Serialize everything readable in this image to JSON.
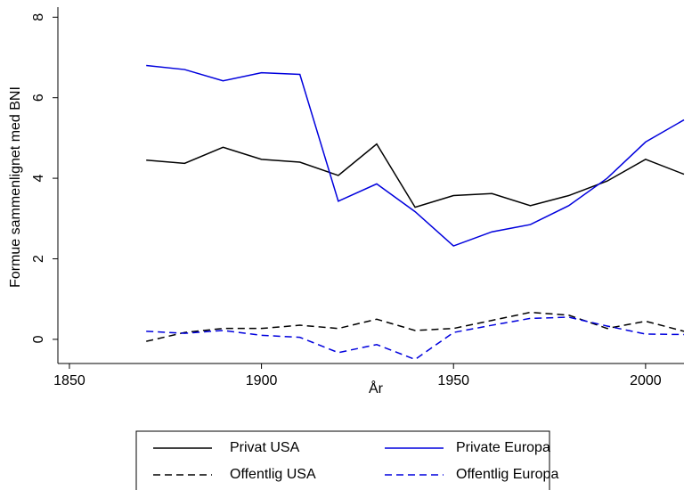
{
  "chart_data": {
    "type": "line",
    "x_label": "År",
    "y_label": "Formue sammenlignet med BNI",
    "x": [
      1870,
      1880,
      1890,
      1900,
      1910,
      1920,
      1930,
      1940,
      1950,
      1960,
      1970,
      1980,
      1990,
      2000,
      2010
    ],
    "series": [
      {
        "name": "Privat USA",
        "color": "#000000",
        "style": "solid",
        "values": [
          4.45,
          4.37,
          4.77,
          4.47,
          4.4,
          4.07,
          4.85,
          3.28,
          3.57,
          3.62,
          3.32,
          3.57,
          3.93,
          4.47,
          4.1
        ]
      },
      {
        "name": "Offentlig USA",
        "color": "#000000",
        "style": "dashed",
        "values": [
          -0.05,
          0.17,
          0.27,
          0.27,
          0.35,
          0.27,
          0.5,
          0.22,
          0.27,
          0.47,
          0.67,
          0.6,
          0.27,
          0.45,
          0.2
        ]
      },
      {
        "name": "Private Europa",
        "color": "#0000dd",
        "style": "solid",
        "values": [
          6.8,
          6.7,
          6.42,
          6.62,
          6.58,
          3.43,
          3.86,
          3.17,
          2.32,
          2.67,
          2.85,
          3.32,
          4.0,
          4.9,
          5.45
        ]
      },
      {
        "name": "Offentlig Europa",
        "color": "#0000dd",
        "style": "dashed",
        "values": [
          0.2,
          0.15,
          0.22,
          0.1,
          0.05,
          -0.33,
          -0.13,
          -0.5,
          0.17,
          0.35,
          0.52,
          0.55,
          0.33,
          0.13,
          0.12
        ]
      }
    ],
    "xlim": [
      1847,
      2010
    ],
    "xticks": [
      1850,
      1900,
      1950,
      2000
    ],
    "ylim": [
      -0.6,
      8.25
    ],
    "yticks": [
      0,
      2,
      4,
      6,
      8
    ],
    "grid": false,
    "legend": "bottom"
  }
}
